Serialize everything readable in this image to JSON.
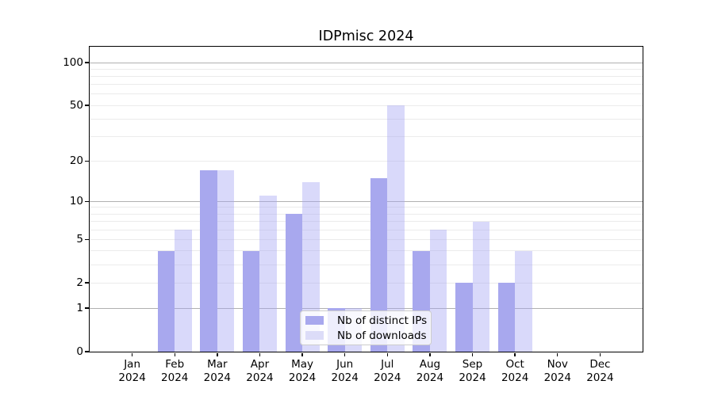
{
  "chart_data": {
    "type": "bar",
    "title": "IDPmisc 2024",
    "year": "2024",
    "months": [
      "Jan",
      "Feb",
      "Mar",
      "Apr",
      "May",
      "Jun",
      "Jul",
      "Aug",
      "Sep",
      "Oct",
      "Nov",
      "Dec"
    ],
    "series": [
      {
        "name": "Nb of distinct IPs",
        "color": "#a8a8ee",
        "values": [
          0,
          4,
          17,
          4,
          8,
          1,
          15,
          4,
          2,
          2,
          0,
          0
        ]
      },
      {
        "name": "Nb of downloads",
        "color": "rgba(164,164,242,0.42)",
        "color_flat": "#dcdcf8",
        "values": [
          0,
          6,
          17,
          11,
          14,
          1,
          50,
          6,
          7,
          4,
          0,
          0
        ]
      }
    ],
    "y_axis": {
      "scale": "log1p",
      "ticks": [
        0,
        1,
        2,
        5,
        10,
        20,
        50,
        100
      ],
      "ylim": [
        0,
        130
      ],
      "gridlines_major": [
        1,
        10,
        100
      ],
      "gridlines_minor": [
        2,
        3,
        4,
        5,
        6,
        7,
        8,
        9,
        20,
        30,
        40,
        50,
        60,
        70,
        80,
        90
      ],
      "grid_major_color": "#b0b0b0",
      "grid_minor_color": "#ebebeb"
    },
    "x_axis": {
      "tick_label_format": "month-over-year"
    },
    "legend": {
      "position": "lower center, inside plot",
      "entries": [
        "Nb of distinct IPs",
        "Nb of downloads"
      ]
    }
  }
}
